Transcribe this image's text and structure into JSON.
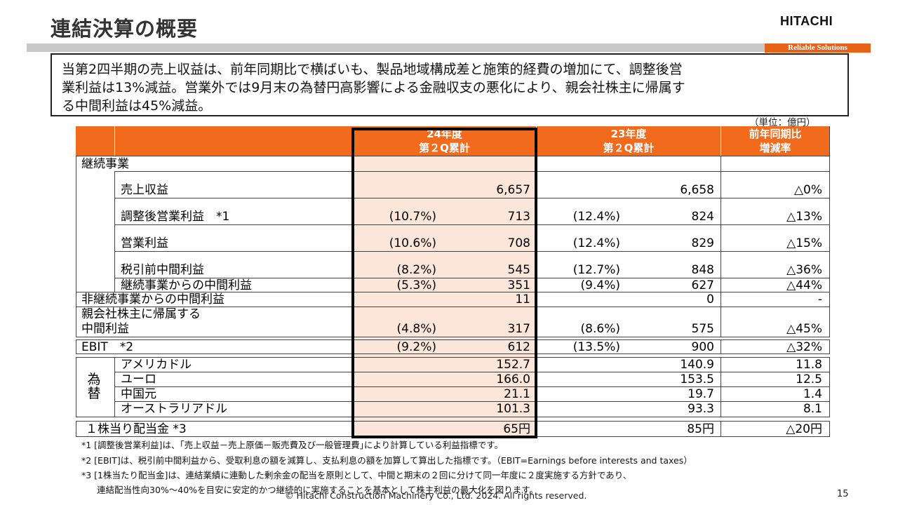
{
  "header": {
    "title": "連結決算の概要",
    "logo": "HITACHI",
    "tagline": "Reliable Solutions"
  },
  "summary": {
    "line1": "当第2四半期の売上収益は、前年同期比で横ばいも、製品地域構成差と施策的経費の増加にて、調整後営",
    "line2": "業利益は13%減益。営業外では9月末の為替円高影響による金融収支の悪化により、親会社株主に帰属す",
    "line3": "る中間利益は45%減益。"
  },
  "unit": "（単位：億円）",
  "table": {
    "headers": {
      "current_l1": "24年度",
      "current_l2": "第２Q累計",
      "prior_l1": "23年度",
      "prior_l2": "第２Q累計",
      "change_l1": "前年同期比",
      "change_l2": "増減率"
    },
    "section_continuing": "継続事業",
    "rows": [
      {
        "label": "売上収益",
        "cur_pct": "",
        "cur": "6,657",
        "prev_pct": "",
        "prev": "6,658",
        "chg": "△0%"
      },
      {
        "label": "調整後営業利益　*1",
        "cur_pct": "(10.7%)",
        "cur": "713",
        "prev_pct": "(12.4%)",
        "prev": "824",
        "chg": "△13%"
      },
      {
        "label": "営業利益",
        "cur_pct": "(10.6%)",
        "cur": "708",
        "prev_pct": "(12.4%)",
        "prev": "829",
        "chg": "△15%"
      },
      {
        "label": "税引前中間利益",
        "cur_pct": "(8.2%)",
        "cur": "545",
        "prev_pct": "(12.7%)",
        "prev": "848",
        "chg": "△36%"
      },
      {
        "label": "継続事業からの中間利益",
        "cur_pct": "(5.3%)",
        "cur": "351",
        "prev_pct": "(9.4%)",
        "prev": "627",
        "chg": "△44%"
      },
      {
        "label": "非継続事業からの中間利益",
        "cur_pct": "",
        "cur": "11",
        "prev_pct": "",
        "prev": "0",
        "chg": "-"
      },
      {
        "label": "中間利益",
        "cur_pct": "(4.8%)",
        "cur": "317",
        "prev_pct": "(8.6%)",
        "prev": "575",
        "chg": "△45%"
      }
    ],
    "parent_label_l1": "親会社株主に帰属する",
    "ebit": {
      "label": "EBIT　*2",
      "cur_pct": "(9.2%)",
      "cur": "612",
      "prev_pct": "(13.5%)",
      "prev": "900",
      "chg": "△32%"
    },
    "fx_label_1": "為",
    "fx_label_2": "替",
    "fx": [
      {
        "label": "アメリカドル",
        "cur": "152.7",
        "prev": "140.9",
        "chg": "11.8"
      },
      {
        "label": "ユーロ",
        "cur": "166.0",
        "prev": "153.5",
        "chg": "12.5"
      },
      {
        "label": "中国元",
        "cur": "21.1",
        "prev": "19.7",
        "chg": "1.4"
      },
      {
        "label": "オーストラリアドル",
        "cur": "101.3",
        "prev": "93.3",
        "chg": "8.1"
      }
    ],
    "dividend": {
      "label": "１株当り配当金 *3",
      "cur": "65円",
      "prev": "85円",
      "chg": "△20円"
    }
  },
  "footnotes": {
    "n1": "*1 [調整後営業利益]は、｢売上収益－売上原価－販売費及び一般管理費｣により計算している利益指標です。",
    "n2": "*2 [EBIT]は、税引前中間利益から、受取利息の額を減算し、支払利息の額を加算して算出した指標です。（EBIT=Earnings before interests and taxes）",
    "n3a": "*3 [1株当たり配当金]は、連結業績に連動した剰余金の配当を原則として、中間と期末の２回に分けて同一年度に２度実施する方針であり、",
    "n3b": "連結配当性向30%～40%を目安に安定的かつ継続的に実施することを基本として株主利益の最大化を図ります。"
  },
  "footer": {
    "copyright": "© Hitachi Construction Machinery Co., Ltd. 2024. All rights reserved.",
    "page": "15"
  },
  "colors": {
    "accent": "#f26b1d",
    "highlight": "#fbe6d9",
    "rule": "#c8c8c8"
  }
}
